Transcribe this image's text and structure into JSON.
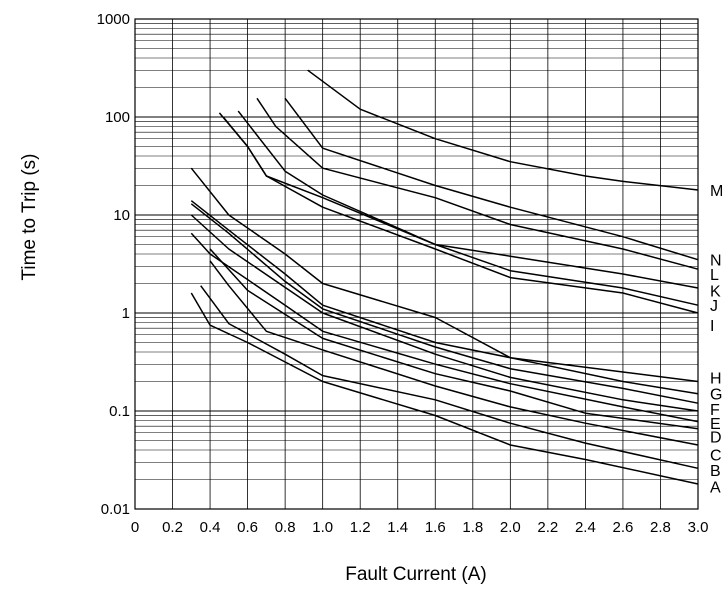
{
  "chart_data": {
    "type": "line",
    "title": "",
    "xlabel": "Fault Current (A)",
    "ylabel": "Time to Trip (s)",
    "x_scale": "linear",
    "y_scale": "log",
    "xlim": [
      0,
      3.0
    ],
    "ylim": [
      0.01,
      1000
    ],
    "grid": true,
    "x_ticks": [
      "0",
      "0.2",
      "0.4",
      "0.6",
      "0.8",
      "1.0",
      "1.2",
      "1.4",
      "1.6",
      "1.8",
      "2.0",
      "2.2",
      "2.4",
      "2.6",
      "2.8",
      "3.0"
    ],
    "x_tick_values": [
      0,
      0.2,
      0.4,
      0.6,
      0.8,
      1.0,
      1.2,
      1.4,
      1.6,
      1.8,
      2.0,
      2.2,
      2.4,
      2.6,
      2.8,
      3.0
    ],
    "y_ticks": [
      "0.01",
      "0.1",
      "1",
      "10",
      "100",
      "1000"
    ],
    "y_tick_values": [
      0.01,
      0.1,
      1,
      10,
      100,
      1000
    ],
    "line_color": "#000000",
    "series": [
      {
        "name": "A",
        "x": [
          0.3,
          0.4,
          0.6,
          1.0,
          1.6,
          2.0,
          2.4,
          3.0
        ],
        "y": [
          1.6,
          0.75,
          0.5,
          0.2,
          0.09,
          0.045,
          0.032,
          0.018
        ]
      },
      {
        "name": "B",
        "x": [
          0.35,
          0.5,
          0.8,
          1.0,
          1.6,
          2.0,
          2.4,
          3.0
        ],
        "y": [
          1.9,
          0.78,
          0.38,
          0.23,
          0.13,
          0.075,
          0.047,
          0.026
        ]
      },
      {
        "name": "C",
        "x": [
          0.4,
          0.5,
          0.7,
          1.0,
          1.6,
          2.0,
          2.4,
          3.0
        ],
        "y": [
          3.4,
          1.9,
          0.65,
          0.42,
          0.18,
          0.11,
          0.075,
          0.045
        ]
      },
      {
        "name": "D",
        "x": [
          0.4,
          0.6,
          1.0,
          1.6,
          2.0,
          2.4,
          3.0
        ],
        "y": [
          4.5,
          1.7,
          0.55,
          0.24,
          0.16,
          0.095,
          0.066
        ]
      },
      {
        "name": "E",
        "x": [
          0.3,
          0.4,
          0.8,
          1.0,
          1.6,
          2.0,
          2.6,
          3.0
        ],
        "y": [
          6.5,
          4.0,
          1.2,
          0.65,
          0.3,
          0.19,
          0.11,
          0.078
        ]
      },
      {
        "name": "F",
        "x": [
          0.3,
          0.5,
          1.0,
          1.6,
          2.0,
          2.6,
          3.0
        ],
        "y": [
          10.0,
          4.5,
          1.0,
          0.38,
          0.22,
          0.13,
          0.1
        ]
      },
      {
        "name": "G",
        "x": [
          0.3,
          0.5,
          0.8,
          1.0,
          1.6,
          2.0,
          2.6,
          3.0
        ],
        "y": [
          13.0,
          6.5,
          2.1,
          1.1,
          0.45,
          0.27,
          0.17,
          0.12
        ]
      },
      {
        "name": "H",
        "x": [
          0.3,
          0.5,
          0.8,
          1.0,
          1.6,
          2.0,
          2.6,
          3.0
        ],
        "y": [
          14.0,
          7.0,
          2.5,
          1.2,
          0.5,
          0.35,
          0.2,
          0.15
        ]
      },
      {
        "name": "I",
        "x": [
          0.3,
          0.5,
          0.8,
          1.0,
          1.6,
          2.0,
          2.6,
          3.0
        ],
        "y": [
          30.0,
          10.0,
          4.0,
          2.0,
          0.9,
          0.35,
          0.25,
          0.2
        ]
      },
      {
        "name": "J",
        "x": [
          0.45,
          0.6,
          0.7,
          1.0,
          1.6,
          2.0,
          2.6,
          3.0
        ],
        "y": [
          110.0,
          50.0,
          25.0,
          12.0,
          4.5,
          2.3,
          1.6,
          1.0
        ]
      },
      {
        "name": "K",
        "x": [
          0.47,
          0.6,
          0.7,
          1.0,
          1.6,
          2.0,
          2.6,
          3.0
        ],
        "y": [
          100.0,
          50.0,
          25.0,
          15.0,
          5.0,
          2.7,
          1.8,
          1.2
        ]
      },
      {
        "name": "L",
        "x": [
          0.55,
          0.8,
          1.0,
          1.6,
          2.0,
          2.6,
          3.0
        ],
        "y": [
          115.0,
          28.0,
          16.0,
          5.0,
          3.8,
          2.5,
          1.8
        ]
      },
      {
        "name": "N",
        "x": [
          0.65,
          0.75,
          1.0,
          1.6,
          2.0,
          2.6,
          3.0
        ],
        "y": [
          155.0,
          80.0,
          30.0,
          15.0,
          8.0,
          4.5,
          2.8
        ]
      },
      {
        "name": "M",
        "x": [
          0.8,
          1.0,
          1.6,
          2.0,
          2.6,
          3.0
        ],
        "y": [
          155.0,
          48.0,
          20.0,
          12.0,
          6.0,
          3.5
        ]
      },
      {
        "name": "",
        "x": [
          0.92,
          1.2,
          1.6,
          2.0,
          2.4,
          2.6,
          3.0
        ],
        "y": [
          300.0,
          120.0,
          60.0,
          35.0,
          25.0,
          22.0,
          18.0
        ]
      }
    ],
    "curve_labels": [
      {
        "text": "M",
        "y": 18.0
      },
      {
        "text": "N",
        "y": 3.5
      },
      {
        "text": "L",
        "y": 2.5
      },
      {
        "text": "K",
        "y": 1.7
      },
      {
        "text": "J",
        "y": 1.2
      },
      {
        "text": "I",
        "y": 0.75
      },
      {
        "text": "H",
        "y": 0.22
      },
      {
        "text": "G",
        "y": 0.15
      },
      {
        "text": "F",
        "y": 0.105
      },
      {
        "text": "E",
        "y": 0.075
      },
      {
        "text": "D",
        "y": 0.055
      },
      {
        "text": "C",
        "y": 0.036
      },
      {
        "text": "B",
        "y": 0.025
      },
      {
        "text": "A",
        "y": 0.017
      }
    ]
  }
}
